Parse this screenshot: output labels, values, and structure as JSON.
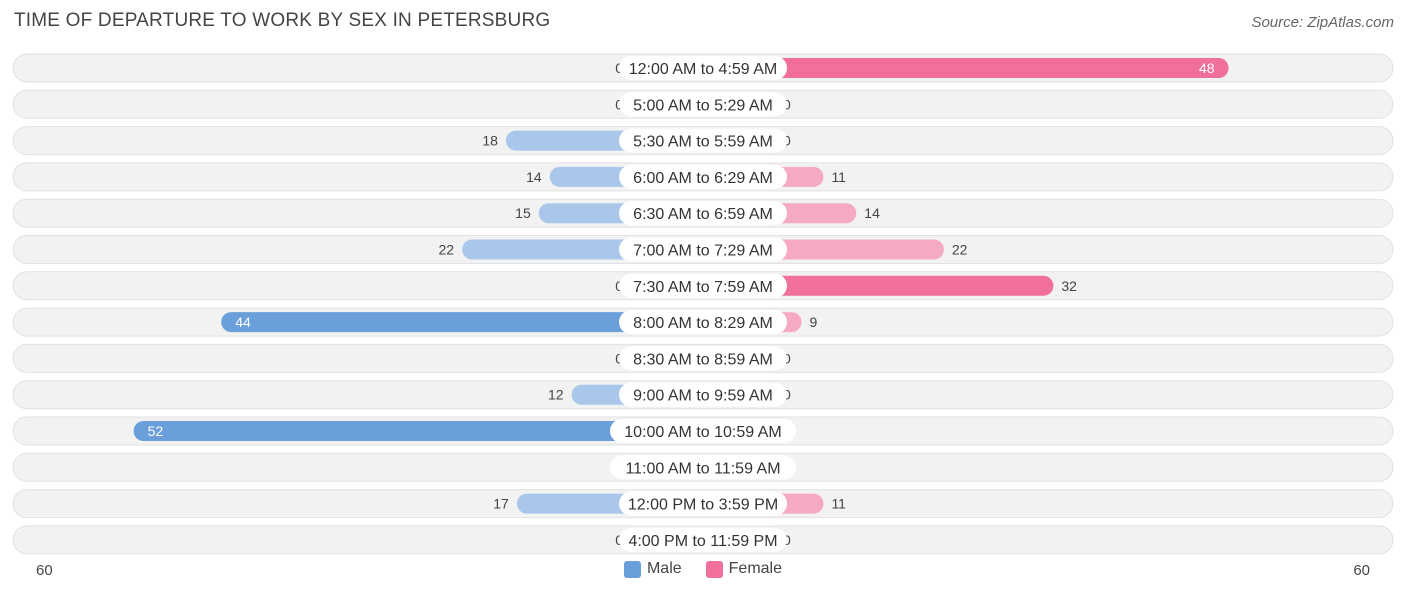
{
  "header": {
    "title": "TIME OF DEPARTURE TO WORK BY SEX IN PETERSBURG",
    "source": "Source: ZipAtlas.com"
  },
  "legend": {
    "male_label": "Male",
    "female_label": "Female"
  },
  "axis": {
    "left_label": "60",
    "right_label": "60"
  },
  "colors": {
    "male_strong": "#6a9fdb",
    "male_light": "#a9c7ea",
    "female_strong": "#f07099",
    "female_light": "#f6a9c2",
    "row_bg": "#f2f2f2",
    "row_border": "#e2e2e2"
  },
  "chart_data": {
    "type": "bar",
    "orientation": "horizontal-diverging",
    "title": "TIME OF DEPARTURE TO WORK BY SEX IN PETERSBURG",
    "xlim": [
      -60,
      60
    ],
    "categories": [
      "12:00 AM to 4:59 AM",
      "5:00 AM to 5:29 AM",
      "5:30 AM to 5:59 AM",
      "6:00 AM to 6:29 AM",
      "6:30 AM to 6:59 AM",
      "7:00 AM to 7:29 AM",
      "7:30 AM to 7:59 AM",
      "8:00 AM to 8:29 AM",
      "8:30 AM to 8:59 AM",
      "9:00 AM to 9:59 AM",
      "10:00 AM to 10:59 AM",
      "11:00 AM to 11:59 AM",
      "12:00 PM to 3:59 PM",
      "4:00 PM to 11:59 PM"
    ],
    "series": [
      {
        "name": "Male",
        "values": [
          0,
          0,
          18,
          14,
          15,
          22,
          0,
          44,
          0,
          12,
          52,
          0,
          17,
          0
        ]
      },
      {
        "name": "Female",
        "values": [
          48,
          0,
          0,
          11,
          14,
          22,
          32,
          9,
          0,
          0,
          0,
          0,
          11,
          0
        ]
      }
    ],
    "legend_position": "bottom-center"
  }
}
